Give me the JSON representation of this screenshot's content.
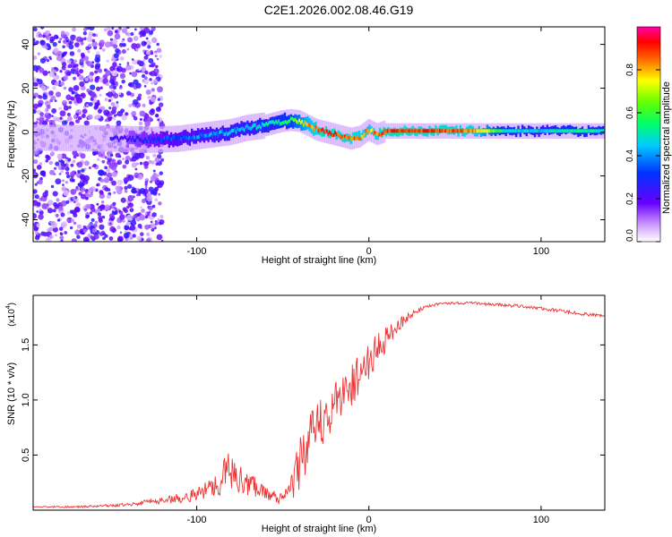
{
  "figure": {
    "title": "C2E1.2026.002.08.46.G19"
  },
  "chart_data": [
    {
      "type": "heatmap",
      "name": "spectrogram",
      "xlabel": "Height of straight line (km)",
      "ylabel": "Frequency (Hz)",
      "xlim": [
        -195,
        137
      ],
      "ylim": [
        -50,
        48
      ],
      "xticks": [
        -100,
        0,
        100
      ],
      "yticks": [
        -40,
        -20,
        0,
        20,
        40
      ],
      "colorbar": {
        "label": "Normalized spectral amplitude",
        "range": [
          0.0,
          1.0
        ],
        "ticks": [
          "0.0",
          "0.2",
          "0.4",
          "0.6",
          "0.8"
        ]
      },
      "ridge": {
        "x": [
          -195,
          -150,
          -125,
          -110,
          -100,
          -90,
          -80,
          -70,
          -60,
          -55,
          -50,
          -45,
          -40,
          -35,
          -30,
          -25,
          -20,
          -15,
          -10,
          -5,
          0,
          5,
          10,
          20,
          40,
          60,
          80,
          100,
          120,
          137
        ],
        "freq": [
          -2.5,
          -3,
          -3.5,
          -3,
          -2,
          -1,
          0,
          2,
          3,
          4,
          5,
          5.5,
          5,
          3,
          1,
          0,
          -1,
          -2,
          -3,
          -2,
          1,
          -1,
          0.5,
          0.5,
          0.5,
          0.5,
          0.5,
          0.5,
          0.5,
          0.5
        ],
        "amplitude": [
          0.15,
          0.2,
          0.3,
          0.35,
          0.4,
          0.4,
          0.45,
          0.45,
          0.5,
          0.5,
          0.55,
          0.6,
          0.7,
          0.8,
          0.85,
          0.9,
          0.9,
          0.85,
          0.85,
          0.85,
          0.8,
          0.85,
          0.9,
          0.9,
          0.88,
          0.85,
          0.5,
          0.45,
          0.55,
          0.5
        ]
      }
    },
    {
      "type": "line",
      "name": "snr",
      "xlabel": "Height of straight line (km)",
      "ylabel": "SNR (10 * v/v)",
      "y_multiplier": "(x10",
      "y_multiplier_exp": "4",
      "y_multiplier_close": ")",
      "xlim": [
        -195,
        137
      ],
      "ylim": [
        0,
        1.95
      ],
      "xticks": [
        -100,
        0,
        100
      ],
      "yticks": [
        0.5,
        1.0,
        1.5
      ],
      "ytick_labels": [
        "0.5",
        "1.0",
        "1.5"
      ],
      "color": "#ee3333",
      "series": [
        {
          "name": "SNR",
          "x": [
            -195,
            -170,
            -150,
            -135,
            -125,
            -115,
            -105,
            -95,
            -88,
            -82,
            -78,
            -72,
            -65,
            -58,
            -52,
            -48,
            -44,
            -40,
            -35,
            -30,
            -25,
            -20,
            -15,
            -10,
            -5,
            0,
            5,
            10,
            15,
            20,
            25,
            30,
            35,
            40,
            45,
            50,
            60,
            70,
            80,
            90,
            100,
            110,
            120,
            130,
            137
          ],
          "y": [
            0.03,
            0.03,
            0.04,
            0.06,
            0.08,
            0.1,
            0.12,
            0.18,
            0.25,
            0.35,
            0.3,
            0.25,
            0.22,
            0.15,
            0.1,
            0.12,
            0.25,
            0.45,
            0.6,
            0.75,
            0.85,
            0.95,
            1.05,
            1.15,
            1.25,
            1.35,
            1.45,
            1.55,
            1.65,
            1.72,
            1.78,
            1.82,
            1.85,
            1.87,
            1.88,
            1.88,
            1.88,
            1.87,
            1.86,
            1.85,
            1.83,
            1.81,
            1.79,
            1.77,
            1.76
          ],
          "noise": [
            0.005,
            0.008,
            0.012,
            0.02,
            0.03,
            0.04,
            0.05,
            0.08,
            0.12,
            0.2,
            0.15,
            0.12,
            0.1,
            0.06,
            0.04,
            0.08,
            0.2,
            0.25,
            0.25,
            0.25,
            0.22,
            0.22,
            0.2,
            0.2,
            0.2,
            0.18,
            0.15,
            0.12,
            0.08,
            0.05,
            0.03,
            0.02,
            0.015,
            0.012,
            0.012,
            0.012,
            0.012,
            0.015,
            0.015,
            0.015,
            0.015,
            0.015,
            0.015,
            0.015,
            0.015
          ]
        }
      ]
    }
  ]
}
